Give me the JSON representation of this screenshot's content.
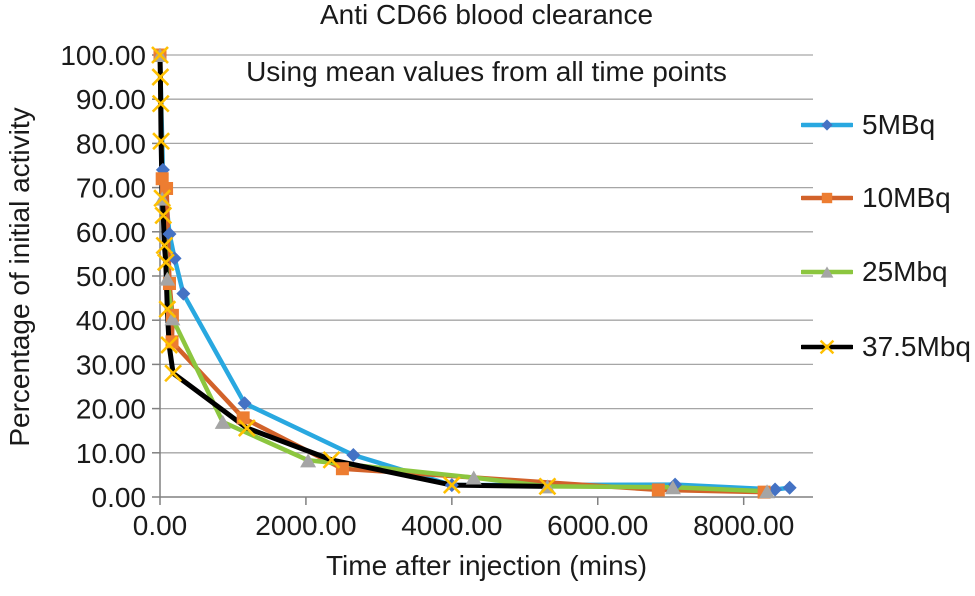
{
  "chart_data": {
    "type": "line",
    "title": "Anti CD66 blood clearance",
    "subtitle": "Using mean values from all time points",
    "xlabel": "Time after injection (mins)",
    "ylabel": "Percentage of initial activity",
    "xlim": [
      0,
      8950
    ],
    "ylim": [
      0,
      100
    ],
    "grid": "horizontal",
    "legend_position": "right",
    "x_ticks": {
      "values": [
        0,
        2000,
        4000,
        6000,
        8000
      ],
      "labels": [
        "0.00",
        "2000.00",
        "4000.00",
        "6000.00",
        "8000.00"
      ]
    },
    "y_ticks": {
      "values": [
        0,
        10,
        20,
        30,
        40,
        50,
        60,
        70,
        80,
        90,
        100
      ],
      "labels": [
        "0.00",
        "10.00",
        "20.00",
        "30.00",
        "40.00",
        "50.00",
        "60.00",
        "70.00",
        "80.00",
        "90.00",
        "100.00"
      ]
    },
    "series": [
      {
        "name": "5MBq",
        "line_color": "#29a8e0",
        "marker": "diamond",
        "marker_color": "#4472c4",
        "points": [
          [
            0,
            100
          ],
          [
            40,
            74
          ],
          [
            130,
            59.5
          ],
          [
            200,
            54
          ],
          [
            320,
            46
          ],
          [
            1160,
            21.2
          ],
          [
            2650,
            9.5
          ],
          [
            4000,
            2.7
          ],
          [
            7060,
            2.8
          ],
          [
            8430,
            1.7
          ],
          [
            8630,
            2.1
          ]
        ]
      },
      {
        "name": "10MBq",
        "line_color": "#d2622a",
        "marker": "square",
        "marker_color": "#ed7d31",
        "points": [
          [
            0,
            100
          ],
          [
            30,
            72
          ],
          [
            90,
            69.8
          ],
          [
            130,
            48.3
          ],
          [
            170,
            41.1
          ],
          [
            165,
            35.1
          ],
          [
            1140,
            17.9
          ],
          [
            2500,
            6.4
          ],
          [
            6830,
            1.6
          ],
          [
            8280,
            1.1
          ]
        ]
      },
      {
        "name": "25Mbq",
        "line_color": "#8cc63f",
        "marker": "triangle",
        "marker_color": "#a5a5a5",
        "points": [
          [
            0,
            100
          ],
          [
            30,
            67.5
          ],
          [
            100,
            49.4
          ],
          [
            170,
            40.4
          ],
          [
            860,
            17.0
          ],
          [
            2030,
            8.3
          ],
          [
            4300,
            4.4
          ],
          [
            5310,
            2.4
          ],
          [
            7030,
            2.2
          ],
          [
            8320,
            1.3
          ]
        ]
      },
      {
        "name": "37.5Mbq",
        "line_color": "#000000",
        "marker": "x",
        "marker_color": "#ffc000",
        "points": [
          [
            0,
            100
          ],
          [
            5,
            95
          ],
          [
            10,
            89
          ],
          [
            15,
            80.5
          ],
          [
            30,
            67.6
          ],
          [
            45,
            63.7
          ],
          [
            60,
            56.9
          ],
          [
            80,
            53.1
          ],
          [
            100,
            42.5
          ],
          [
            125,
            34.4
          ],
          [
            180,
            28.0
          ],
          [
            1190,
            15.6
          ],
          [
            2350,
            8.4
          ],
          [
            4000,
            2.7
          ],
          [
            5310,
            2.4
          ]
        ]
      }
    ],
    "colors": {
      "gridline": "#a6a6a6",
      "axis": "#808080",
      "text": "#1a1a1a",
      "background": "#ffffff"
    }
  }
}
